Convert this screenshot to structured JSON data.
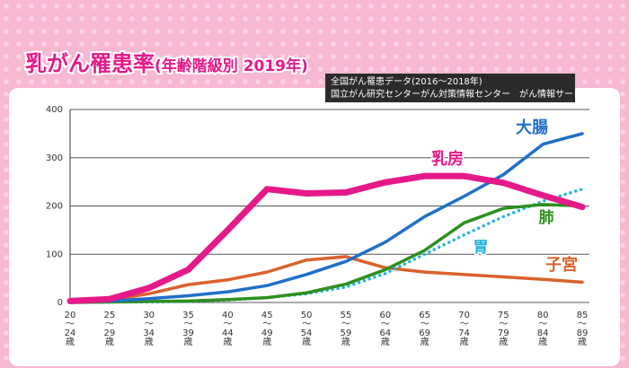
{
  "title": "乳がん罹患率",
  "subtitle": "(年齢階級別 2019年)",
  "source": [
    "全国がん罹患データ(2016～2018年)",
    "国立がん研究センターがん対策情報センター　がん情報サービス"
  ],
  "chart_data": {
    "type": "line",
    "categories": [
      "20 ～ 24 歳",
      "25 ～ 29 歳",
      "30 ～ 34 歳",
      "35 ～ 39 歳",
      "40 ～ 44 歳",
      "45 ～ 49 歳",
      "50 ～ 54 歳",
      "55 ～ 59 歳",
      "60 ～ 64 歳",
      "65 ～ 69 歳",
      "70 ～ 74 歳",
      "75 ～ 79 歳",
      "80 ～ 84 歳",
      "85 ～ 89 歳"
    ],
    "ylim": [
      0,
      400
    ],
    "yticks": [
      0,
      100,
      200,
      300,
      400
    ],
    "grid": true,
    "series": [
      {
        "name": "子宮",
        "color": "#d9622b",
        "style": "solid",
        "values": [
          2,
          5,
          18,
          37,
          47,
          63,
          88,
          95,
          72,
          63,
          58,
          53,
          48,
          42
        ]
      },
      {
        "name": "胃",
        "color": "#22b5dd",
        "style": "dotted",
        "values": [
          0,
          1,
          1,
          2,
          5,
          10,
          18,
          32,
          60,
          100,
          140,
          178,
          210,
          235
        ]
      },
      {
        "name": "肺",
        "color": "#2e8f1f",
        "style": "solid",
        "values": [
          0,
          1,
          2,
          3,
          6,
          10,
          20,
          38,
          68,
          108,
          165,
          195,
          203,
          200
        ]
      },
      {
        "name": "大腸",
        "color": "#1f6fca",
        "style": "solid",
        "values": [
          1,
          3,
          8,
          14,
          22,
          35,
          58,
          85,
          125,
          178,
          220,
          265,
          328,
          350
        ]
      },
      {
        "name": "乳房",
        "color": "#e5198a",
        "style": "thick",
        "values": [
          3,
          7,
          30,
          68,
          150,
          235,
          226,
          228,
          249,
          262,
          262,
          248,
          222,
          198
        ]
      }
    ]
  }
}
